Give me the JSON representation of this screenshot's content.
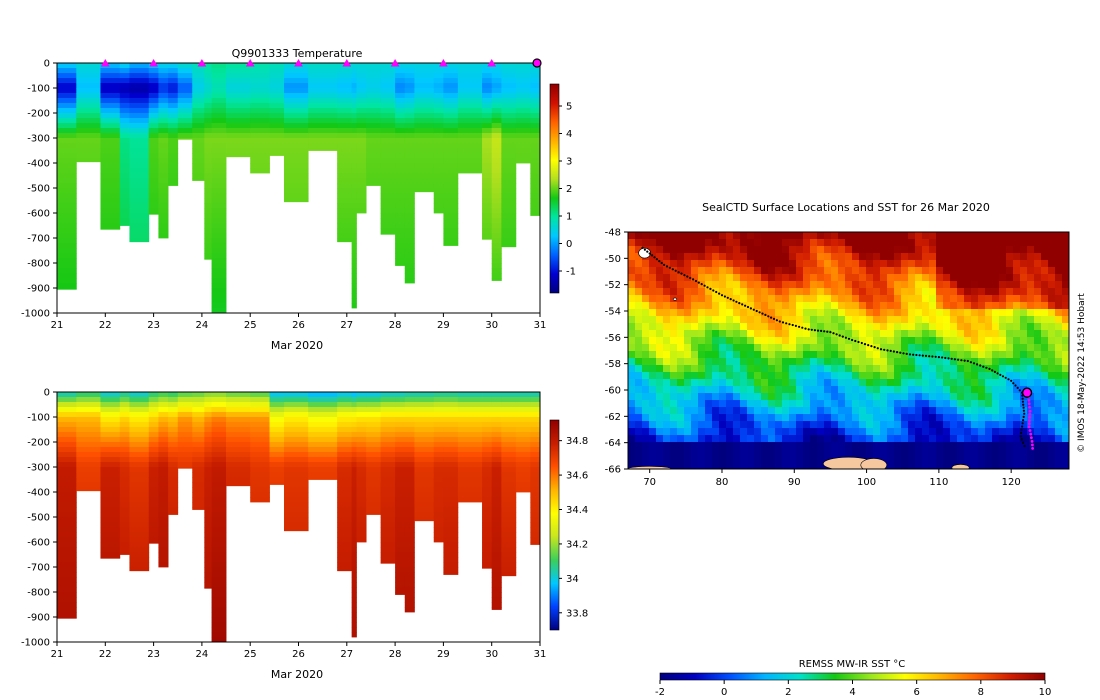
{
  "colors": {
    "temp_cmap": [
      "#00007f",
      "#0000d0",
      "#0060ff",
      "#00c8ff",
      "#00e5a0",
      "#14c814",
      "#b4e01e",
      "#ffff00",
      "#ffb000",
      "#ff6000",
      "#d01000",
      "#900000"
    ],
    "salt_cmap": [
      "#00007f",
      "#0040ff",
      "#00c8ff",
      "#3ccf5a",
      "#c8e61e",
      "#ffff00",
      "#ffb400",
      "#ff5000",
      "#c81e00",
      "#900000"
    ],
    "sst_cmap": [
      "#00007f",
      "#0000c0",
      "#0050ff",
      "#00b4ff",
      "#00e1c8",
      "#14c814",
      "#96e61e",
      "#ffff00",
      "#ffb400",
      "#ff6400",
      "#d21e00",
      "#900000"
    ],
    "land": "#f5c8a0",
    "marker": "#ff00ff"
  },
  "chart_data": [
    {
      "id": "temperature",
      "type": "heatmap",
      "title": "Q9901333  Temperature",
      "xlabel": "Mar 2020",
      "x_ticks": [
        "21",
        "22",
        "23",
        "24",
        "25",
        "26",
        "27",
        "28",
        "29",
        "30",
        "31"
      ],
      "y_ticks": [
        "0",
        "-100",
        "-200",
        "-300",
        "-400",
        "-500",
        "-600",
        "-700",
        "-800",
        "-900",
        "-1000"
      ],
      "colorbar_ticks": [
        "5",
        "4",
        "3",
        "2",
        "1",
        "0",
        "-1"
      ],
      "colorbar_range": [
        -1.8,
        5.8
      ],
      "xlim": [
        21,
        31
      ],
      "ylim": [
        -1000,
        0
      ],
      "day_markers": [
        22,
        23,
        24,
        25,
        26,
        27,
        28,
        29,
        30
      ],
      "current_marker": 31
    },
    {
      "id": "salinity",
      "type": "heatmap",
      "title": "",
      "xlabel": "Mar 2020",
      "x_ticks": [
        "21",
        "22",
        "23",
        "24",
        "25",
        "26",
        "27",
        "28",
        "29",
        "30",
        "31"
      ],
      "y_ticks": [
        "0",
        "-100",
        "-200",
        "-300",
        "-400",
        "-500",
        "-600",
        "-700",
        "-800",
        "-900",
        "-1000"
      ],
      "colorbar_ticks": [
        "34.8",
        "34.6",
        "34.4",
        "34.2",
        "34",
        "33.8"
      ],
      "colorbar_range": [
        33.7,
        34.92
      ],
      "xlim": [
        21,
        31
      ],
      "ylim": [
        -1000,
        0
      ]
    },
    {
      "id": "sst_map",
      "type": "heatmap",
      "title": "SealCTD Surface Locations and SST for 26 Mar 2020",
      "x_ticks": [
        "70",
        "80",
        "90",
        "100",
        "110",
        "120"
      ],
      "y_ticks": [
        "-48",
        "-50",
        "-52",
        "-54",
        "-56",
        "-58",
        "-60",
        "-62",
        "-64",
        "-66"
      ],
      "xlim": [
        67,
        128
      ],
      "ylim": [
        -66,
        -48
      ],
      "colorbar_label": "REMSS MW-IR SST °C",
      "colorbar_ticks": [
        "-2",
        "0",
        "2",
        "4",
        "6",
        "8",
        "10"
      ],
      "colorbar_range": [
        -2,
        10
      ],
      "track": [
        [
          69,
          -49.2
        ],
        [
          72,
          -50.5
        ],
        [
          76,
          -51.6
        ],
        [
          80,
          -52.8
        ],
        [
          84,
          -53.8
        ],
        [
          88,
          -54.8
        ],
        [
          92,
          -55.4
        ],
        [
          95,
          -55.6
        ],
        [
          98,
          -56.2
        ],
        [
          102,
          -56.9
        ],
        [
          106,
          -57.3
        ],
        [
          110,
          -57.5
        ],
        [
          114,
          -57.8
        ],
        [
          117,
          -58.4
        ],
        [
          120,
          -59.3
        ],
        [
          121.5,
          -60.2
        ],
        [
          121.8,
          -61.8
        ],
        [
          121.3,
          -63.5
        ],
        [
          122,
          -64.5
        ]
      ],
      "recent_track": [
        [
          122.4,
          -60.5
        ],
        [
          122.6,
          -61.6
        ],
        [
          122.5,
          -62.8
        ],
        [
          122.9,
          -63.9
        ],
        [
          123,
          -64.7
        ]
      ],
      "current_position": [
        122.2,
        -60.2
      ],
      "side_label": "© IMOS 18-May-2022 14:53 Hobart"
    }
  ],
  "profiles": [
    {
      "day": 21.0,
      "max_depth": 905,
      "temp": [
        0.4,
        -1.2,
        2.0,
        1.6
      ],
      "sal": [
        34.0,
        34.5,
        34.8,
        34.85
      ]
    },
    {
      "day": 21.4,
      "max_depth": 395,
      "temp": [
        0.6,
        0.2,
        2.0,
        1.7
      ],
      "sal": [
        34.05,
        34.5,
        34.7,
        34.8
      ]
    },
    {
      "day": 21.9,
      "max_depth": 665,
      "temp": [
        0.3,
        -1.3,
        1.9,
        1.6
      ],
      "sal": [
        33.98,
        34.4,
        34.78,
        34.85
      ]
    },
    {
      "day": 22.3,
      "max_depth": 650,
      "temp": [
        0.5,
        -1.4,
        1.1,
        1.6
      ],
      "sal": [
        34.02,
        34.45,
        34.75,
        34.82
      ]
    },
    {
      "day": 22.5,
      "max_depth": 715,
      "temp": [
        0.2,
        -1.5,
        1.0,
        1.4
      ],
      "sal": [
        33.98,
        34.4,
        34.72,
        34.82
      ]
    },
    {
      "day": 22.9,
      "max_depth": 605,
      "temp": [
        0.4,
        -1.3,
        1.9,
        1.6
      ],
      "sal": [
        34.05,
        34.45,
        34.78,
        34.85
      ]
    },
    {
      "day": 23.1,
      "max_depth": 700,
      "temp": [
        0.5,
        -0.8,
        2.0,
        1.6
      ],
      "sal": [
        34.08,
        34.5,
        34.8,
        34.85
      ]
    },
    {
      "day": 23.3,
      "max_depth": 490,
      "temp": [
        0.5,
        -1.0,
        1.9,
        1.6
      ],
      "sal": [
        34.06,
        34.48,
        34.75,
        34.82
      ]
    },
    {
      "day": 23.5,
      "max_depth": 305,
      "temp": [
        0.7,
        -0.5,
        2.0,
        1.8
      ],
      "sal": [
        34.1,
        34.55,
        34.72,
        34.8
      ]
    },
    {
      "day": 23.8,
      "max_depth": 470,
      "temp": [
        0.8,
        0.4,
        2.0,
        1.7
      ],
      "sal": [
        34.12,
        34.5,
        34.75,
        34.8
      ]
    },
    {
      "day": 24.05,
      "max_depth": 785,
      "temp": [
        1.0,
        0.6,
        2.1,
        1.7
      ],
      "sal": [
        34.15,
        34.55,
        34.78,
        34.85
      ]
    },
    {
      "day": 24.2,
      "max_depth": 1012,
      "temp": [
        1.1,
        0.8,
        2.1,
        1.6
      ],
      "sal": [
        34.15,
        34.58,
        34.8,
        34.88
      ]
    },
    {
      "day": 24.5,
      "max_depth": 375,
      "temp": [
        1.0,
        0.5,
        2.1,
        1.8
      ],
      "sal": [
        34.12,
        34.55,
        34.75,
        34.82
      ]
    },
    {
      "day": 25.0,
      "max_depth": 440,
      "temp": [
        0.9,
        0.6,
        2.1,
        1.8
      ],
      "sal": [
        34.1,
        34.55,
        34.72,
        34.8
      ]
    },
    {
      "day": 25.4,
      "max_depth": 370,
      "temp": [
        0.8,
        0.5,
        2.1,
        1.8
      ],
      "sal": [
        33.95,
        34.35,
        34.7,
        34.8
      ]
    },
    {
      "day": 25.7,
      "max_depth": 555,
      "temp": [
        0.6,
        -0.1,
        2.1,
        1.8
      ],
      "sal": [
        33.95,
        34.4,
        34.72,
        34.8
      ]
    },
    {
      "day": 26.2,
      "max_depth": 350,
      "temp": [
        0.7,
        0.3,
        2.1,
        1.8
      ],
      "sal": [
        33.92,
        34.35,
        34.7,
        34.78
      ]
    },
    {
      "day": 26.8,
      "max_depth": 715,
      "temp": [
        0.7,
        0.2,
        2.1,
        1.7
      ],
      "sal": [
        33.95,
        34.4,
        34.75,
        34.82
      ]
    },
    {
      "day": 27.1,
      "max_depth": 980,
      "temp": [
        0.6,
        0.1,
        2.1,
        1.7
      ],
      "sal": [
        33.92,
        34.4,
        34.78,
        34.85
      ]
    },
    {
      "day": 27.2,
      "max_depth": 600,
      "temp": [
        0.6,
        0.3,
        2.1,
        1.7
      ],
      "sal": [
        33.95,
        34.42,
        34.75,
        34.82
      ]
    },
    {
      "day": 27.4,
      "max_depth": 490,
      "temp": [
        0.6,
        0.4,
        2.0,
        1.7
      ],
      "sal": [
        33.95,
        34.42,
        34.72,
        34.8
      ]
    },
    {
      "day": 27.7,
      "max_depth": 685,
      "temp": [
        0.6,
        0.3,
        2.0,
        1.7
      ],
      "sal": [
        33.98,
        34.45,
        34.75,
        34.82
      ]
    },
    {
      "day": 28.0,
      "max_depth": 810,
      "temp": [
        0.5,
        -0.2,
        2.0,
        1.7
      ],
      "sal": [
        33.98,
        34.45,
        34.78,
        34.85
      ]
    },
    {
      "day": 28.2,
      "max_depth": 880,
      "temp": [
        0.5,
        -0.1,
        2.0,
        1.7
      ],
      "sal": [
        34.0,
        34.45,
        34.78,
        34.85
      ]
    },
    {
      "day": 28.4,
      "max_depth": 515,
      "temp": [
        0.5,
        0.2,
        2.0,
        1.7
      ],
      "sal": [
        34.0,
        34.45,
        34.72,
        34.8
      ]
    },
    {
      "day": 28.8,
      "max_depth": 600,
      "temp": [
        0.5,
        0.1,
        2.0,
        1.7
      ],
      "sal": [
        34.02,
        34.45,
        34.75,
        34.8
      ]
    },
    {
      "day": 29.0,
      "max_depth": 730,
      "temp": [
        0.5,
        -0.1,
        2.0,
        1.7
      ],
      "sal": [
        34.02,
        34.45,
        34.75,
        34.82
      ]
    },
    {
      "day": 29.3,
      "max_depth": 440,
      "temp": [
        0.5,
        0.3,
        2.0,
        1.7
      ],
      "sal": [
        34.0,
        34.45,
        34.72,
        34.8
      ]
    },
    {
      "day": 29.8,
      "max_depth": 705,
      "temp": [
        0.5,
        -0.2,
        2.3,
        1.7
      ],
      "sal": [
        34.0,
        34.45,
        34.75,
        34.82
      ]
    },
    {
      "day": 30.0,
      "max_depth": 870,
      "temp": [
        0.5,
        0.0,
        2.5,
        1.7
      ],
      "sal": [
        34.0,
        34.45,
        34.78,
        34.85
      ]
    },
    {
      "day": 30.2,
      "max_depth": 735,
      "temp": [
        0.6,
        0.2,
        2.0,
        1.7
      ],
      "sal": [
        34.0,
        34.45,
        34.72,
        34.82
      ]
    },
    {
      "day": 30.5,
      "max_depth": 400,
      "temp": [
        0.6,
        0.3,
        2.0,
        1.8
      ],
      "sal": [
        34.0,
        34.45,
        34.7,
        34.8
      ]
    },
    {
      "day": 30.8,
      "max_depth": 610,
      "temp": [
        0.6,
        0.2,
        2.0,
        1.7
      ],
      "sal": [
        34.0,
        34.45,
        34.72,
        34.8
      ]
    },
    {
      "day": 31.0,
      "max_depth": 695,
      "temp": [
        0.6,
        0.3,
        2.0,
        1.7
      ],
      "sal": [
        34.0,
        34.45,
        34.72,
        34.8
      ]
    }
  ]
}
